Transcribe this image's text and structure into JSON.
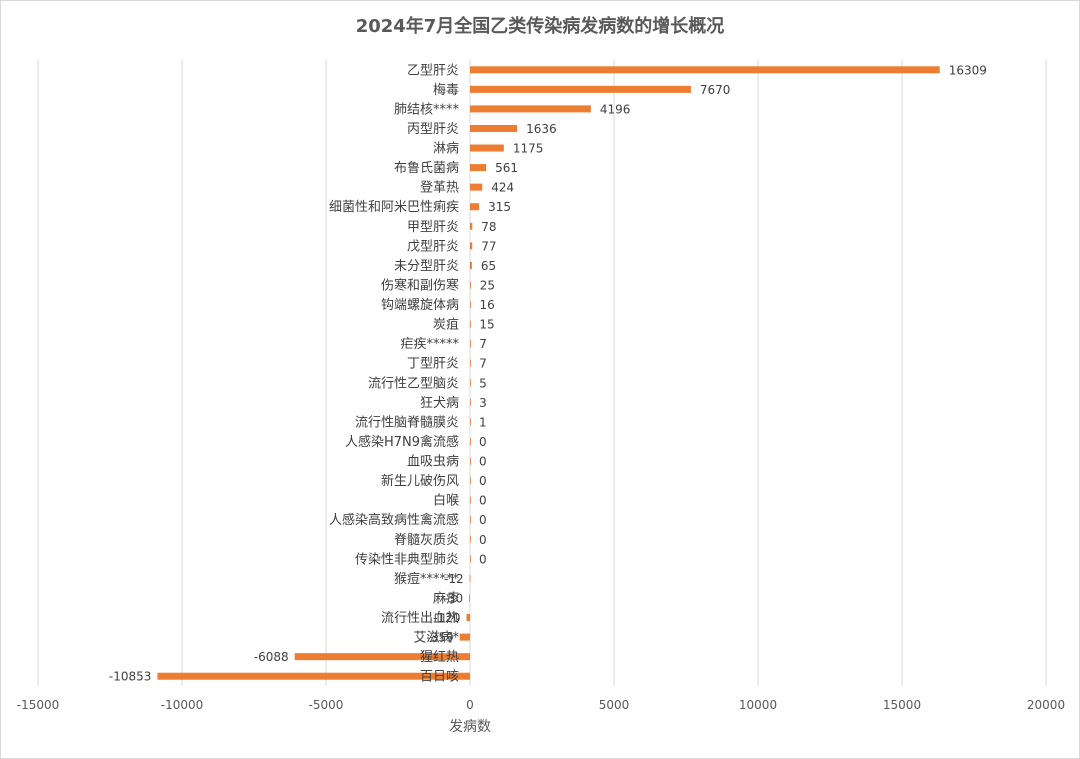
{
  "chart_data": {
    "type": "bar",
    "orientation": "horizontal",
    "title": "2024年7月全国乙类传染病发病数的增长概况",
    "xlabel": "发病数",
    "ylabel": "",
    "xlim": [
      -15000,
      20000
    ],
    "xticks": [
      -15000,
      -10000,
      -5000,
      0,
      5000,
      10000,
      15000,
      20000
    ],
    "grid": "vertical",
    "color": "#ED7D31",
    "gridColor": "#d9d9d9",
    "categories": [
      "乙型肝炎",
      "梅毒",
      "肺结核****",
      "丙型肝炎",
      "淋病",
      "布鲁氏菌病",
      "登革热",
      "细菌性和阿米巴性痢疾",
      "甲型肝炎",
      "戊型肝炎",
      "未分型肝炎",
      "伤寒和副伤寒",
      "钩端螺旋体病",
      "炭疽",
      "疟疾*****",
      "丁型肝炎",
      "流行性乙型脑炎",
      "狂犬病",
      "流行性脑脊髓膜炎",
      "人感染H7N9禽流感",
      "血吸虫病",
      "新生儿破伤风",
      "白喉",
      "人感染高致病性禽流感",
      "脊髓灰质炎",
      "传染性非典型肺炎",
      "猴痘******",
      "麻疹",
      "流行性出血热",
      "艾滋病*",
      "猩红热",
      "百日咳"
    ],
    "values": [
      16309,
      7670,
      4196,
      1636,
      1175,
      561,
      424,
      315,
      78,
      77,
      65,
      25,
      16,
      15,
      7,
      7,
      5,
      3,
      1,
      0,
      0,
      0,
      0,
      0,
      0,
      0,
      -12,
      -30,
      -120,
      -359,
      -6088,
      -10853
    ]
  }
}
